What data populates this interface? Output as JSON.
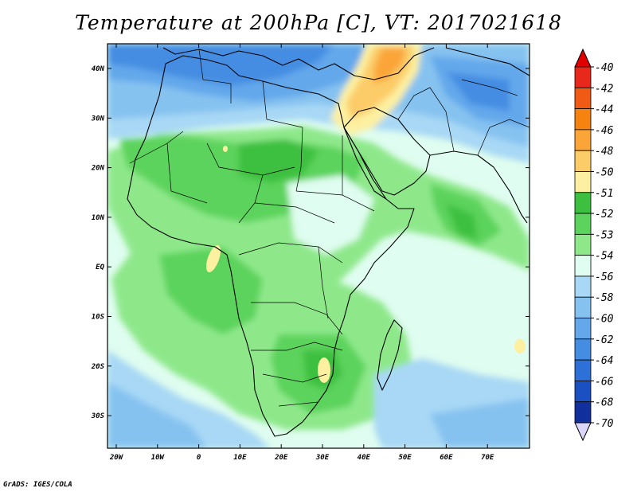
{
  "title": "Temperature at 200hPa [C], VT: 2017021618",
  "credit": "GrADS: IGES/COLA",
  "lat_labels": [
    "40N",
    "30N",
    "20N",
    "10N",
    "EQ",
    "10S",
    "20S",
    "30S"
  ],
  "lon_labels": [
    "20W",
    "10W",
    "0",
    "10E",
    "20E",
    "30E",
    "40E",
    "50E",
    "60E",
    "70E"
  ],
  "colorbar": {
    "labels": [
      "-40",
      "-42",
      "-44",
      "-46",
      "-48",
      "-50",
      "-51",
      "-52",
      "-53",
      "-54",
      "-56",
      "-58",
      "-60",
      "-62",
      "-64",
      "-66",
      "-68",
      "-70"
    ],
    "colors": [
      "#e8281a",
      "#f05a14",
      "#f6830f",
      "#fba538",
      "#fccc68",
      "#fdf0a0",
      "#3dc040",
      "#5cd35c",
      "#8ee88a",
      "#dffdf0",
      "#a8d8f5",
      "#86c2f0",
      "#64a8eb",
      "#448de2",
      "#2c70d8",
      "#1a50c2",
      "#122f9e",
      "#0a1470"
    ],
    "top_arrow_color": "#e00000",
    "bottom_arrow_color": "#dcd6f8"
  }
}
